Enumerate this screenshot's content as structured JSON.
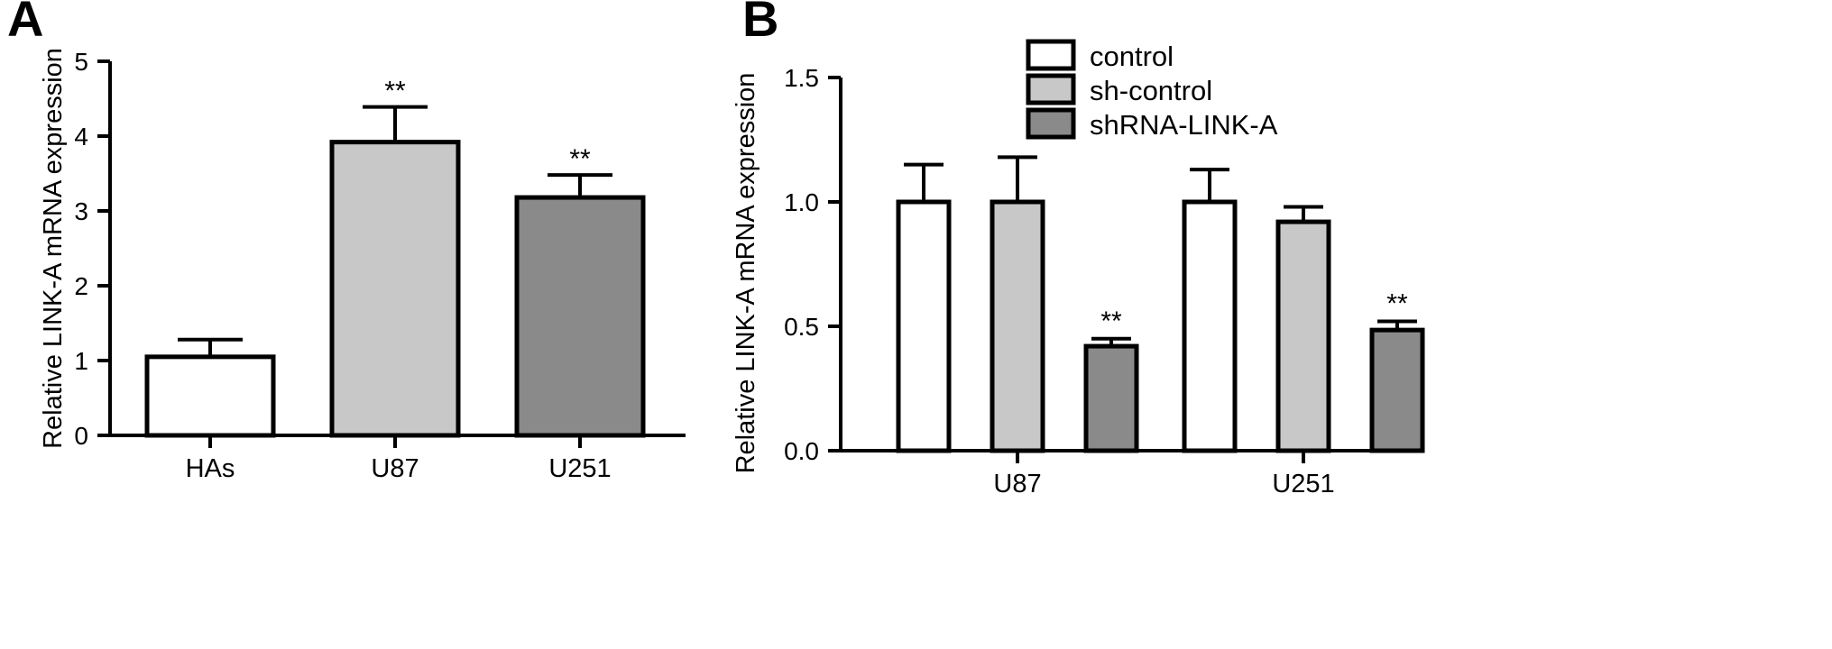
{
  "panels": [
    {
      "letter": "A",
      "chart_data": {
        "type": "bar",
        "ylabel": "Relative LINK-A mRNA expression",
        "xlabel": "",
        "ylim": [
          0,
          5
        ],
        "yticks": [
          0,
          1,
          2,
          3,
          4,
          5
        ],
        "categories": [
          "HAs",
          "U87",
          "U251"
        ],
        "values": [
          1.05,
          3.92,
          3.18
        ],
        "errors": [
          0.23,
          0.47,
          0.3
        ],
        "colors": [
          "#ffffff",
          "#c8c8c8",
          "#8a8a8a"
        ],
        "annotations": [
          "",
          "**",
          "**"
        ],
        "grid": false
      }
    },
    {
      "letter": "B",
      "chart_data": {
        "type": "bar",
        "ylabel": "Relative LINK-A mRNA expression",
        "xlabel": "",
        "ylim": [
          0,
          1.5
        ],
        "yticks": [
          "0.0",
          "0.5",
          "1.0",
          "1.5"
        ],
        "categories": [
          "U87",
          "U251"
        ],
        "series": [
          {
            "name": "control",
            "color": "#ffffff",
            "values": [
              1.0,
              1.0
            ],
            "errors": [
              0.15,
              0.13
            ],
            "annotations": [
              "",
              ""
            ]
          },
          {
            "name": "sh-control",
            "color": "#c8c8c8",
            "values": [
              1.0,
              0.92
            ],
            "errors": [
              0.18,
              0.06
            ],
            "annotations": [
              "",
              ""
            ]
          },
          {
            "name": "shRNA-LINK-A",
            "color": "#8a8a8a",
            "values": [
              0.42,
              0.485
            ],
            "errors": [
              0.03,
              0.035
            ],
            "annotations": [
              "**",
              "**"
            ]
          }
        ],
        "legend_position": "top-right",
        "grid": false
      }
    }
  ]
}
